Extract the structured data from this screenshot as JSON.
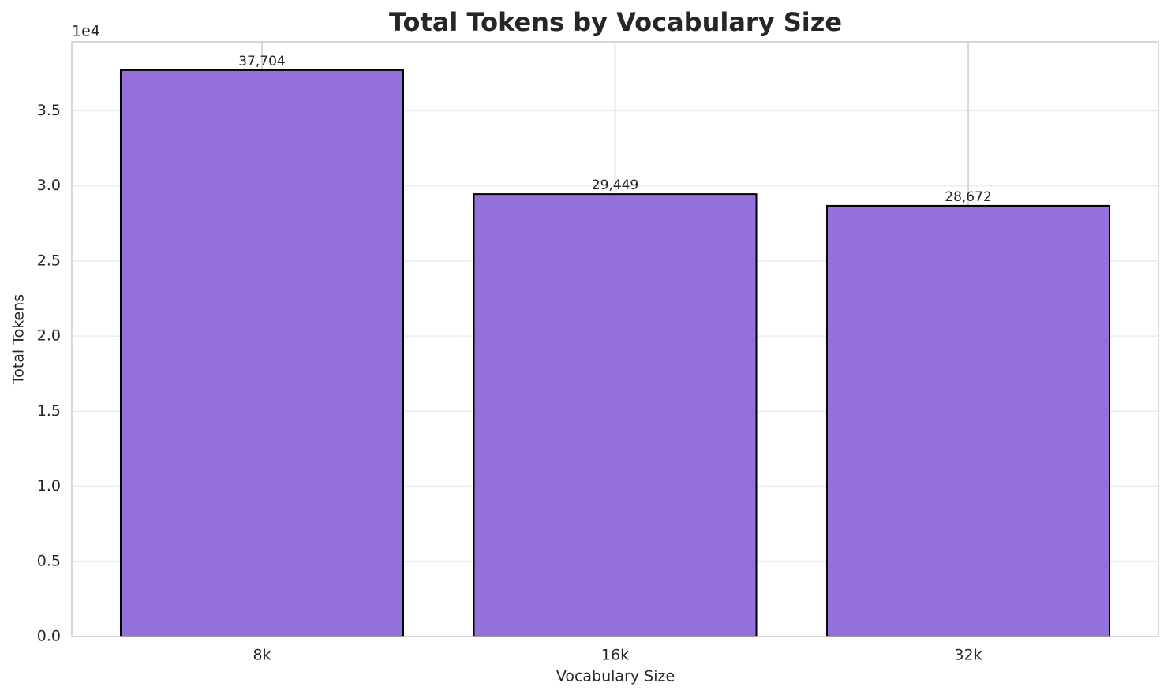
{
  "chart_data": {
    "type": "bar",
    "title": "Total Tokens by Vocabulary Size",
    "x_label": "Vocabulary Size",
    "y_label": "Total Tokens",
    "y_offset_label": "1e4",
    "categories": [
      "8k",
      "16k",
      "32k"
    ],
    "values": [
      37704,
      29449,
      28672
    ],
    "value_labels": [
      "37,704",
      "29,449",
      "28,672"
    ],
    "color": "#9370db",
    "edge_color": "#000000",
    "ylim": [
      0,
      39589
    ],
    "yticks": [
      {
        "value": 0,
        "label": "0.0"
      },
      {
        "value": 5000,
        "label": "0.5"
      },
      {
        "value": 10000,
        "label": "1.0"
      },
      {
        "value": 15000,
        "label": "1.5"
      },
      {
        "value": 20000,
        "label": "2.0"
      },
      {
        "value": 25000,
        "label": "2.5"
      },
      {
        "value": 30000,
        "label": "3.0"
      },
      {
        "value": 35000,
        "label": "3.5"
      }
    ],
    "grid": true
  }
}
